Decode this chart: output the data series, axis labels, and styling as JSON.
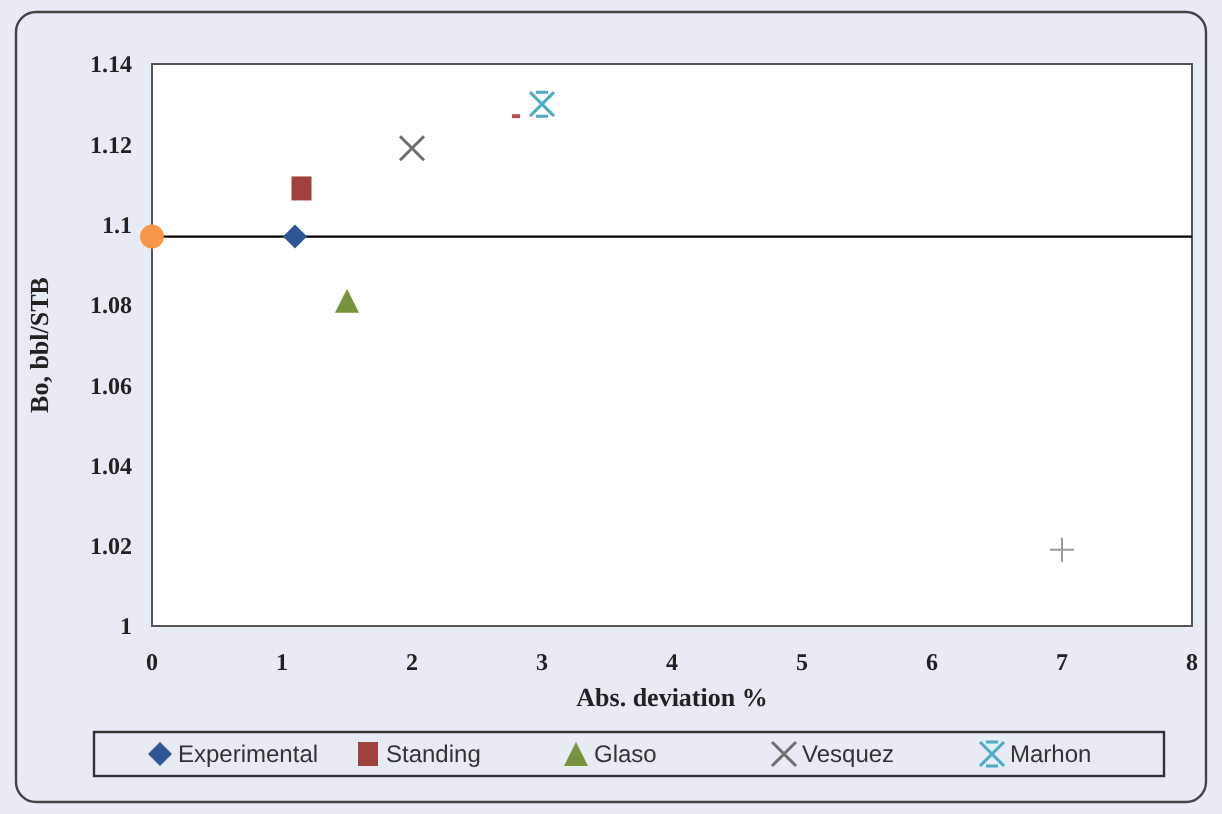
{
  "chart_data": {
    "type": "scatter",
    "xlabel": "Abs. deviation %",
    "ylabel": "Bo, bbl/STB",
    "xlim": [
      0,
      8
    ],
    "xticks": [
      0,
      1,
      2,
      3,
      4,
      5,
      6,
      7,
      8
    ],
    "ylim": [
      1,
      1.14
    ],
    "yticks": [
      1,
      1.02,
      1.04,
      1.06,
      1.08,
      1.1,
      1.12,
      1.14
    ],
    "grid": false,
    "legend": "bottom",
    "ref_lines": [
      {
        "axis": "y",
        "value": 1.097,
        "color": "#000000"
      }
    ],
    "series": [
      {
        "name": "Experimental",
        "color": "#2f5597",
        "marker": "diamond",
        "x": [
          1.1
        ],
        "values": [
          1.097
        ]
      },
      {
        "name": "Standing",
        "color": "#a0413c",
        "marker": "square",
        "x": [
          1.15
        ],
        "values": [
          1.109
        ]
      },
      {
        "name": "Glaso",
        "color": "#77933c",
        "marker": "triangle",
        "x": [
          1.5
        ],
        "values": [
          1.081
        ]
      },
      {
        "name": "Vesquez",
        "color": "#6f6f6f",
        "marker": "x",
        "x": [
          2
        ],
        "values": [
          1.119
        ]
      },
      {
        "name": "Marhon",
        "color": "#4bacc6",
        "marker": "cross",
        "x": [
          3
        ],
        "values": [
          1.13
        ]
      },
      {
        "color": "#f79646",
        "marker": "circle",
        "x": [
          0
        ],
        "values": [
          1.097
        ]
      },
      {
        "color": "#c0504d",
        "marker": "square",
        "x": [
          2.8
        ],
        "values": [
          1.127
        ]
      },
      {
        "color": "#9a9a9a",
        "marker": "plus",
        "x": [
          7
        ],
        "values": [
          1.019
        ]
      }
    ]
  }
}
